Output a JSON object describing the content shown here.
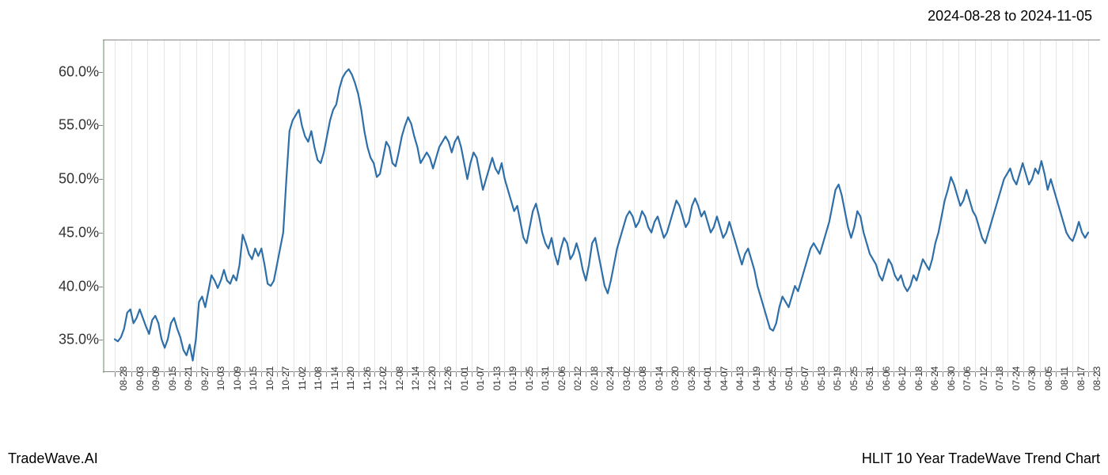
{
  "header": {
    "date_range": "2024-08-28 to 2024-11-05"
  },
  "footer": {
    "left": "TradeWave.AI",
    "right": "HLIT 10 Year TradeWave Trend Chart"
  },
  "chart": {
    "type": "line",
    "background_color": "#ffffff",
    "grid_color": "#e5e5e5",
    "axis_color": "#888888",
    "line_color": "#2f6fa8",
    "line_width": 2.2,
    "highlight_band": {
      "color": "rgba(150,190,150,0.25)",
      "x_start_label": "08-28",
      "x_end_label": "11-05"
    },
    "y_axis": {
      "min": 32,
      "max": 63,
      "ticks": [
        35.0,
        40.0,
        45.0,
        50.0,
        55.0,
        60.0
      ],
      "tick_labels": [
        "35.0%",
        "40.0%",
        "45.0%",
        "50.0%",
        "55.0%",
        "60.0%"
      ],
      "label_fontsize": 18,
      "label_color": "#333333"
    },
    "x_axis": {
      "labels": [
        "08-28",
        "09-03",
        "09-09",
        "09-15",
        "09-21",
        "09-27",
        "10-03",
        "10-09",
        "10-15",
        "10-21",
        "10-27",
        "11-02",
        "11-08",
        "11-14",
        "11-20",
        "11-26",
        "12-02",
        "12-08",
        "12-14",
        "12-20",
        "12-26",
        "01-01",
        "01-07",
        "01-13",
        "01-19",
        "01-25",
        "01-31",
        "02-06",
        "02-12",
        "02-18",
        "02-24",
        "03-02",
        "03-08",
        "03-14",
        "03-20",
        "03-26",
        "04-01",
        "04-07",
        "04-13",
        "04-19",
        "04-25",
        "05-01",
        "05-07",
        "05-13",
        "05-19",
        "05-25",
        "05-31",
        "06-06",
        "06-12",
        "06-18",
        "06-24",
        "06-30",
        "07-06",
        "07-12",
        "07-18",
        "07-24",
        "07-30",
        "08-05",
        "08-11",
        "08-17",
        "08-23"
      ],
      "label_fontsize": 12,
      "label_rotation": -90,
      "label_color": "#333333"
    },
    "series": {
      "values": [
        35.0,
        34.8,
        35.2,
        36.0,
        37.5,
        37.8,
        36.5,
        37.0,
        37.8,
        37.0,
        36.2,
        35.5,
        36.8,
        37.2,
        36.5,
        35.0,
        34.2,
        35.0,
        36.5,
        37.0,
        36.0,
        35.2,
        34.0,
        33.5,
        34.5,
        33.0,
        35.0,
        38.5,
        39.0,
        38.0,
        39.5,
        41.0,
        40.5,
        39.8,
        40.5,
        41.5,
        40.5,
        40.2,
        41.0,
        40.5,
        42.0,
        44.8,
        44.0,
        43.0,
        42.5,
        43.5,
        42.8,
        43.5,
        42.0,
        40.2,
        40.0,
        40.5,
        42.0,
        43.5,
        45.0,
        50.0,
        54.5,
        55.5,
        56.0,
        56.5,
        55.0,
        54.0,
        53.5,
        54.5,
        53.0,
        51.8,
        51.5,
        52.5,
        54.0,
        55.5,
        56.5,
        57.0,
        58.5,
        59.5,
        60.0,
        60.3,
        59.8,
        59.0,
        58.0,
        56.5,
        54.5,
        53.0,
        52.0,
        51.5,
        50.2,
        50.5,
        52.0,
        53.5,
        53.0,
        51.5,
        51.2,
        52.5,
        54.0,
        55.0,
        55.8,
        55.2,
        54.0,
        53.0,
        51.5,
        52.0,
        52.5,
        52.0,
        51.0,
        52.0,
        53.0,
        53.5,
        54.0,
        53.5,
        52.5,
        53.5,
        54.0,
        53.0,
        51.5,
        50.0,
        51.5,
        52.5,
        52.0,
        50.5,
        49.0,
        50.0,
        51.0,
        52.0,
        51.0,
        50.5,
        51.5,
        50.0,
        49.0,
        48.0,
        47.0,
        47.5,
        46.0,
        44.5,
        44.0,
        45.5,
        47.0,
        47.7,
        46.5,
        45.0,
        44.0,
        43.5,
        44.5,
        43.0,
        42.0,
        43.5,
        44.5,
        44.0,
        42.5,
        43.0,
        44.0,
        43.0,
        41.5,
        40.5,
        42.0,
        44.0,
        44.5,
        43.0,
        41.5,
        40.0,
        39.3,
        40.5,
        42.0,
        43.5,
        44.5,
        45.5,
        46.5,
        47.0,
        46.5,
        45.5,
        46.0,
        47.0,
        46.5,
        45.5,
        45.0,
        46.0,
        46.5,
        45.5,
        44.5,
        45.0,
        46.0,
        47.0,
        48.0,
        47.5,
        46.5,
        45.5,
        46.0,
        47.5,
        48.2,
        47.5,
        46.5,
        47.0,
        46.0,
        45.0,
        45.5,
        46.5,
        45.5,
        44.5,
        45.0,
        46.0,
        45.0,
        44.0,
        43.0,
        42.0,
        43.0,
        43.5,
        42.5,
        41.5,
        40.0,
        39.0,
        38.0,
        37.0,
        36.0,
        35.8,
        36.5,
        38.0,
        39.0,
        38.5,
        38.0,
        39.0,
        40.0,
        39.5,
        40.5,
        41.5,
        42.5,
        43.5,
        44.0,
        43.5,
        43.0,
        44.0,
        45.0,
        46.0,
        47.5,
        49.0,
        49.5,
        48.5,
        47.0,
        45.5,
        44.5,
        45.5,
        47.0,
        46.5,
        45.0,
        44.0,
        43.0,
        42.5,
        42.0,
        41.0,
        40.5,
        41.5,
        42.5,
        42.0,
        41.0,
        40.5,
        41.0,
        40.0,
        39.5,
        40.0,
        41.0,
        40.5,
        41.5,
        42.5,
        42.0,
        41.5,
        42.5,
        44.0,
        45.0,
        46.5,
        48.0,
        49.0,
        50.2,
        49.5,
        48.5,
        47.5,
        48.0,
        49.0,
        48.0,
        47.0,
        46.5,
        45.5,
        44.5,
        44.0,
        45.0,
        46.0,
        47.0,
        48.0,
        49.0,
        50.0,
        50.5,
        51.0,
        50.0,
        49.5,
        50.5,
        51.5,
        50.5,
        49.5,
        50.0,
        51.0,
        50.5,
        51.7,
        50.5,
        49.0,
        50.0,
        49.0,
        48.0,
        47.0,
        46.0,
        45.0,
        44.5,
        44.2,
        45.0,
        46.0,
        45.0,
        44.5,
        45.0
      ]
    }
  }
}
